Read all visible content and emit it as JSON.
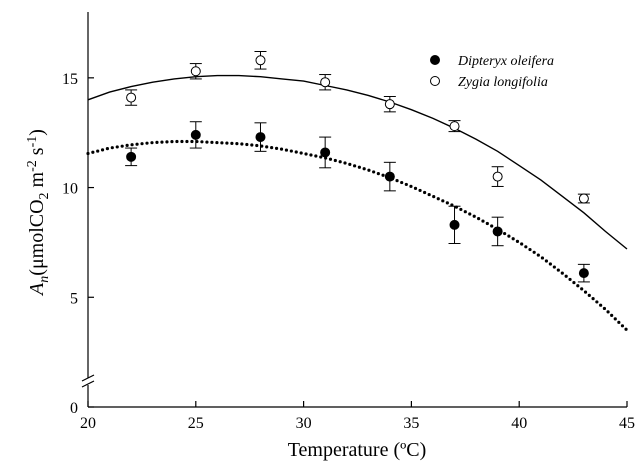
{
  "chart_data": {
    "type": "scatter",
    "xlabel": "Temperature (ºC)",
    "ylabel": {
      "main": "A",
      "sub_n": "n",
      "open": "(μmolCO",
      "sub_2": "2",
      "m": " m",
      "sup_m2": "-2",
      "s": " s",
      "sup_m1": "-1",
      "close": ")"
    },
    "xlim": [
      20,
      45
    ],
    "ylim": [
      0,
      18
    ],
    "axis_break": true,
    "grid": false,
    "legend_position": "top-right",
    "x_ticks": [
      20,
      25,
      30,
      35,
      40,
      45
    ],
    "x_tick_labels": [
      "20",
      "25",
      "30",
      "35",
      "40",
      "45"
    ],
    "y_ticks": [
      0,
      5,
      10,
      15
    ],
    "y_tick_labels": [
      "0",
      "5",
      "10",
      "15"
    ],
    "series": [
      {
        "name": "Dipteryx oleifera",
        "marker": "filled-circle",
        "line": "dotted",
        "x": [
          22,
          25,
          28,
          31,
          34,
          37,
          39,
          43
        ],
        "y": [
          11.4,
          12.4,
          12.3,
          11.6,
          10.5,
          8.3,
          8.0,
          6.1
        ],
        "err": [
          0.4,
          0.6,
          0.65,
          0.7,
          0.65,
          0.85,
          0.65,
          0.4
        ],
        "fit": [
          [
            20,
            11.55
          ],
          [
            21,
            11.8
          ],
          [
            22,
            11.95
          ],
          [
            23,
            12.05
          ],
          [
            24,
            12.1
          ],
          [
            25,
            12.1
          ],
          [
            26,
            12.05
          ],
          [
            27,
            12.0
          ],
          [
            28,
            11.9
          ],
          [
            29,
            11.75
          ],
          [
            30,
            11.55
          ],
          [
            31,
            11.35
          ],
          [
            32,
            11.1
          ],
          [
            33,
            10.8
          ],
          [
            34,
            10.45
          ],
          [
            35,
            10.05
          ],
          [
            36,
            9.6
          ],
          [
            37,
            9.15
          ],
          [
            38,
            8.65
          ],
          [
            39,
            8.1
          ],
          [
            40,
            7.5
          ],
          [
            41,
            6.85
          ],
          [
            42,
            6.1
          ],
          [
            43,
            5.3
          ],
          [
            44,
            4.45
          ],
          [
            45,
            3.5
          ]
        ]
      },
      {
        "name": "Zygia longifolia",
        "marker": "open-circle",
        "line": "solid",
        "x": [
          22,
          25,
          28,
          31,
          34,
          37,
          39,
          43
        ],
        "y": [
          14.1,
          15.3,
          15.8,
          14.8,
          13.8,
          12.8,
          10.5,
          9.5
        ],
        "err": [
          0.35,
          0.35,
          0.4,
          0.35,
          0.35,
          0.25,
          0.45,
          0.2
        ],
        "fit": [
          [
            20,
            14.0
          ],
          [
            21,
            14.35
          ],
          [
            22,
            14.6
          ],
          [
            23,
            14.8
          ],
          [
            24,
            14.95
          ],
          [
            25,
            15.05
          ],
          [
            26,
            15.1
          ],
          [
            27,
            15.1
          ],
          [
            28,
            15.05
          ],
          [
            29,
            14.95
          ],
          [
            30,
            14.85
          ],
          [
            31,
            14.65
          ],
          [
            32,
            14.45
          ],
          [
            33,
            14.2
          ],
          [
            34,
            13.9
          ],
          [
            35,
            13.55
          ],
          [
            36,
            13.15
          ],
          [
            37,
            12.7
          ],
          [
            38,
            12.2
          ],
          [
            39,
            11.65
          ],
          [
            40,
            11.0
          ],
          [
            41,
            10.35
          ],
          [
            42,
            9.6
          ],
          [
            43,
            8.85
          ],
          [
            44,
            8.0
          ],
          [
            45,
            7.2
          ]
        ]
      }
    ]
  }
}
